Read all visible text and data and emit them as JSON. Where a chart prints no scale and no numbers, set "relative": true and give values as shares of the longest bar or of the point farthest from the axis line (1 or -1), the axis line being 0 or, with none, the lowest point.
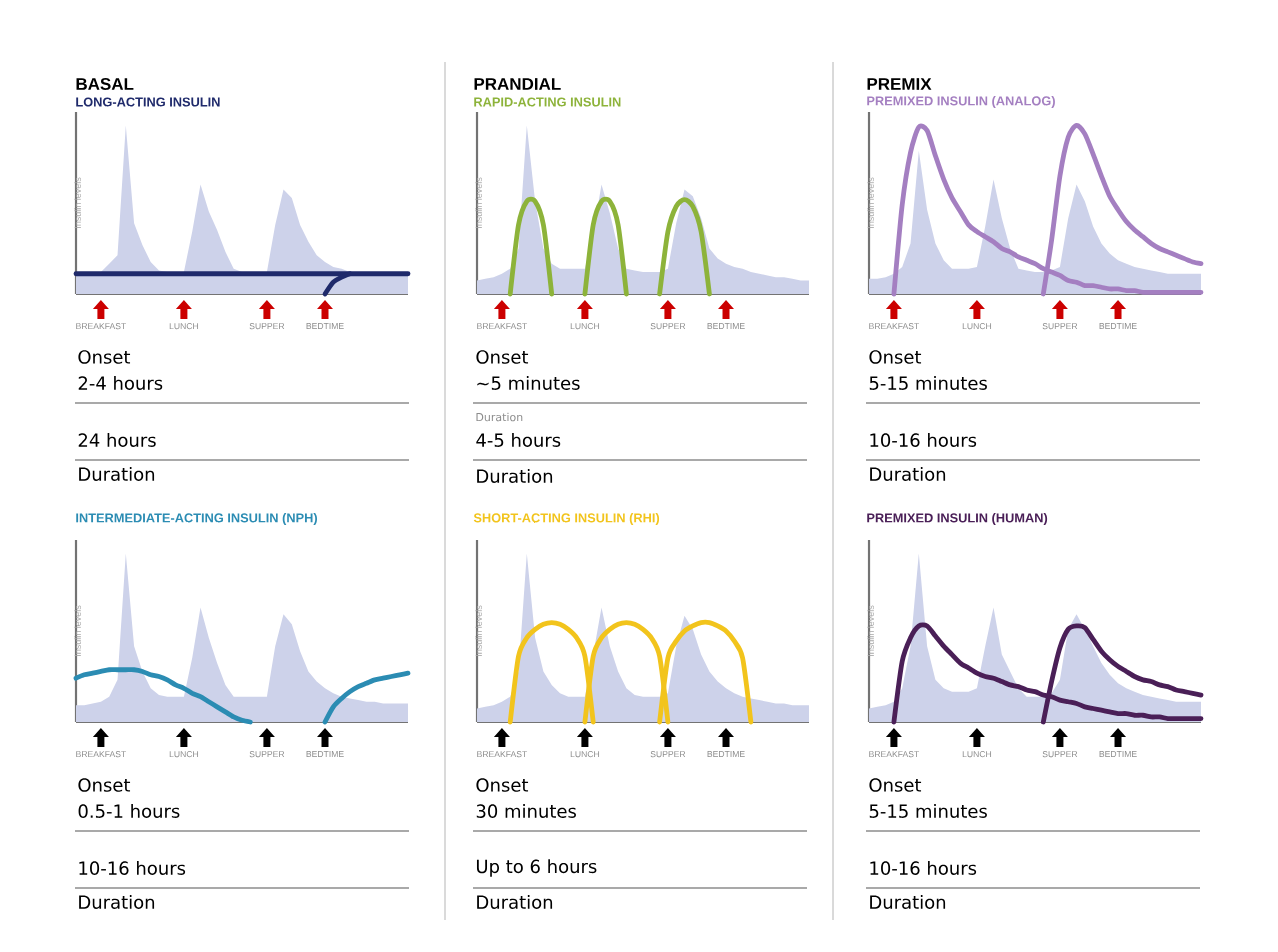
{
  "chart_data": [
    {
      "type": "line",
      "relative": true,
      "title": "BASAL",
      "subtitle": "LONG-ACTING INSULIN",
      "ylabel": "Insulin levels",
      "categories": [
        null,
        null,
        null,
        "BREAKFAST",
        null,
        null,
        null,
        null,
        null,
        null,
        null,
        null,
        null,
        "LUNCH",
        null,
        null,
        null,
        null,
        null,
        null,
        null,
        null,
        null,
        "SUPPER",
        null,
        null,
        null,
        null,
        null,
        null,
        "BEDTIME",
        null,
        null,
        null,
        null,
        null,
        null,
        null,
        null,
        null,
        null
      ],
      "series": [
        {
          "type": "area",
          "color": "#cdd2ea",
          "values": [
            0.13,
            0.13,
            0.13,
            0.13,
            0.18,
            0.23,
            1.0,
            0.42,
            0.29,
            0.19,
            0.14,
            0.13,
            0.13,
            0.13,
            0.37,
            0.65,
            0.49,
            0.38,
            0.25,
            0.15,
            0.13,
            0.13,
            0.13,
            0.13,
            0.41,
            0.62,
            0.57,
            0.41,
            0.31,
            0.23,
            0.19,
            0.16,
            0.15,
            0.13,
            0.13,
            0.13,
            0.13,
            0.13,
            0.13,
            0.13,
            0.13
          ]
        },
        {
          "color": "#1f2a6b",
          "values": [
            0.12,
            0.12,
            0.12,
            0.12,
            0.12,
            0.12,
            0.12,
            0.12,
            0.12,
            0.12,
            0.12,
            0.12,
            0.12,
            0.12,
            0.12,
            0.12,
            0.12,
            0.12,
            0.12,
            0.12,
            0.12,
            0.12,
            0.12,
            0.12,
            0.12,
            0.12,
            0.12,
            0.12,
            0.12,
            0.12,
            0.12,
            0.12,
            0.12,
            0.12,
            0.12,
            0.12,
            0.12,
            0.12,
            0.12,
            0.12,
            0.12
          ]
        },
        {
          "color": "#1f2a6b",
          "values": [
            null,
            null,
            null,
            null,
            null,
            null,
            null,
            null,
            null,
            null,
            null,
            null,
            null,
            null,
            null,
            null,
            null,
            null,
            null,
            null,
            null,
            null,
            null,
            null,
            null,
            null,
            null,
            null,
            null,
            null,
            0,
            0.07,
            0.1,
            0.12,
            null,
            null,
            null,
            null,
            null,
            null,
            null
          ]
        }
      ],
      "annotations": [
        "Onset",
        "2-4 hours",
        "24 hours",
        "Duration"
      ]
    },
    {
      "type": "line",
      "relative": true,
      "title": "PRANDIAL",
      "subtitle": "RAPID-ACTING INSULIN",
      "ylabel": "Insulin levels",
      "categories": [
        null,
        null,
        null,
        "BREAKFAST",
        null,
        null,
        null,
        null,
        null,
        null,
        null,
        null,
        null,
        "LUNCH",
        null,
        null,
        null,
        null,
        null,
        null,
        null,
        null,
        null,
        "SUPPER",
        null,
        null,
        null,
        null,
        null,
        null,
        "BEDTIME",
        null,
        null,
        null,
        null,
        null,
        null,
        null,
        null,
        null,
        null
      ],
      "series": [
        {
          "type": "area",
          "color": "#cdd2ea",
          "values": [
            0.08,
            0.09,
            0.1,
            0.12,
            0.15,
            0.27,
            1.0,
            0.55,
            0.27,
            0.18,
            0.15,
            0.15,
            0.15,
            0.15,
            0.36,
            0.65,
            0.48,
            0.27,
            0.15,
            0.14,
            0.13,
            0.13,
            0.13,
            0.15,
            0.42,
            0.62,
            0.58,
            0.45,
            0.27,
            0.21,
            0.18,
            0.16,
            0.15,
            0.13,
            0.12,
            0.11,
            0.1,
            0.1,
            0.09,
            0.08,
            0.08
          ]
        },
        {
          "color": "#8db33a",
          "values": [
            null,
            null,
            null,
            null,
            0,
            0.41,
            0.55,
            0.55,
            0.41,
            0,
            null,
            null,
            null,
            0,
            0.41,
            0.55,
            0.55,
            0.41,
            0,
            null,
            null,
            null,
            0,
            0.37,
            0.52,
            0.56,
            0.52,
            0.37,
            0,
            null,
            null,
            null,
            null,
            null,
            null,
            null,
            null,
            null,
            null,
            null,
            null
          ]
        }
      ],
      "annotations": [
        "Onset",
        "~5 minutes",
        "Duration",
        "4-5 hours",
        "Duration"
      ]
    },
    {
      "type": "line",
      "relative": true,
      "title": "PREMIX",
      "subtitle": "PREMIXED INSULIN (ANALOG)",
      "ylabel": "Insulin levels",
      "categories": [
        null,
        null,
        null,
        "BREAKFAST",
        null,
        null,
        null,
        null,
        null,
        null,
        null,
        null,
        null,
        "LUNCH",
        null,
        null,
        null,
        null,
        null,
        null,
        null,
        null,
        null,
        "SUPPER",
        null,
        null,
        null,
        null,
        null,
        null,
        "BEDTIME",
        null,
        null,
        null,
        null,
        null,
        null,
        null,
        null,
        null,
        null
      ],
      "series": [
        {
          "type": "area",
          "color": "#cdd2ea",
          "values": [
            0.09,
            0.09,
            0.1,
            0.12,
            0.16,
            0.3,
            0.85,
            0.5,
            0.3,
            0.2,
            0.15,
            0.15,
            0.15,
            0.16,
            0.4,
            0.68,
            0.45,
            0.27,
            0.15,
            0.14,
            0.13,
            0.13,
            0.14,
            0.16,
            0.45,
            0.65,
            0.55,
            0.4,
            0.3,
            0.24,
            0.2,
            0.18,
            0.16,
            0.15,
            0.14,
            0.13,
            0.12,
            0.12,
            0.12,
            0.12,
            0.12
          ]
        },
        {
          "color": "#a47fc1",
          "values": [
            null,
            null,
            null,
            0,
            0.53,
            0.84,
            0.99,
            0.97,
            0.82,
            0.68,
            0.57,
            0.49,
            0.41,
            0.37,
            0.34,
            0.31,
            0.27,
            0.25,
            0.22,
            0.2,
            0.18,
            0.15,
            0.13,
            0.11,
            0.08,
            0.07,
            0.05,
            0.05,
            0.04,
            0.03,
            0.03,
            0.02,
            0.02,
            0.01,
            0.01,
            0.01,
            0.01,
            0.01,
            0.01,
            0.01,
            0.01
          ]
        },
        {
          "color": "#a47fc1",
          "values": [
            null,
            null,
            null,
            null,
            null,
            null,
            null,
            null,
            null,
            null,
            null,
            null,
            null,
            null,
            null,
            null,
            null,
            null,
            null,
            null,
            null,
            0,
            0.32,
            0.7,
            0.93,
            1.0,
            0.95,
            0.83,
            0.7,
            0.58,
            0.5,
            0.43,
            0.38,
            0.34,
            0.3,
            0.27,
            0.25,
            0.23,
            0.21,
            0.19,
            0.18
          ]
        }
      ],
      "annotations": [
        "Onset",
        "5-15 minutes",
        "10-16 hours",
        "Duration"
      ]
    },
    {
      "type": "line",
      "relative": true,
      "title": "INTERMEDIATE-ACTING INSULIN (NPH)",
      "ylabel": "Insulin levels",
      "categories": [
        null,
        null,
        null,
        "BREAKFAST",
        null,
        null,
        null,
        null,
        null,
        null,
        null,
        null,
        null,
        "LUNCH",
        null,
        null,
        null,
        null,
        null,
        null,
        null,
        null,
        null,
        "SUPPER",
        null,
        null,
        null,
        null,
        null,
        null,
        "BEDTIME",
        null,
        null,
        null,
        null,
        null,
        null,
        null,
        null,
        null,
        null
      ],
      "series": [
        {
          "type": "area",
          "color": "#cdd2ea",
          "values": [
            0.1,
            0.1,
            0.11,
            0.12,
            0.15,
            0.25,
            1.0,
            0.45,
            0.3,
            0.2,
            0.16,
            0.15,
            0.15,
            0.15,
            0.38,
            0.68,
            0.5,
            0.35,
            0.22,
            0.15,
            0.15,
            0.15,
            0.15,
            0.15,
            0.45,
            0.64,
            0.58,
            0.42,
            0.3,
            0.24,
            0.2,
            0.17,
            0.15,
            0.14,
            0.13,
            0.12,
            0.12,
            0.11,
            0.11,
            0.11,
            0.11
          ]
        },
        {
          "color": "#2b8cb3",
          "values": [
            0.26,
            0.28,
            0.29,
            0.3,
            0.31,
            0.31,
            0.31,
            0.31,
            0.3,
            0.28,
            0.27,
            0.25,
            0.22,
            0.2,
            0.17,
            0.15,
            0.12,
            0.09,
            0.06,
            0.03,
            0.01,
            0,
            null,
            null,
            null,
            null,
            null,
            null,
            null,
            null,
            0,
            0.09,
            0.14,
            0.18,
            0.21,
            0.23,
            0.25,
            0.26,
            0.27,
            0.28,
            0.29
          ]
        }
      ],
      "annotations": [
        "Onset",
        "0.5-1 hours",
        "10-16 hours",
        "Duration"
      ]
    },
    {
      "type": "line",
      "relative": true,
      "title": "SHORT-ACTING INSULIN (RHI)",
      "ylabel": "Insulin levels",
      "categories": [
        null,
        null,
        null,
        "BREAKFAST",
        null,
        null,
        null,
        null,
        null,
        null,
        null,
        null,
        null,
        "LUNCH",
        null,
        null,
        null,
        null,
        null,
        null,
        null,
        null,
        null,
        "SUPPER",
        null,
        null,
        null,
        null,
        null,
        null,
        "BEDTIME",
        null,
        null,
        null,
        null,
        null,
        null,
        null,
        null,
        null,
        null
      ],
      "series": [
        {
          "type": "area",
          "color": "#cdd2ea",
          "values": [
            0.08,
            0.09,
            0.1,
            0.12,
            0.15,
            0.3,
            1.0,
            0.5,
            0.3,
            0.22,
            0.17,
            0.15,
            0.15,
            0.15,
            0.4,
            0.68,
            0.45,
            0.3,
            0.2,
            0.16,
            0.15,
            0.15,
            0.15,
            0.17,
            0.45,
            0.63,
            0.55,
            0.4,
            0.3,
            0.24,
            0.2,
            0.17,
            0.15,
            0.14,
            0.13,
            0.12,
            0.11,
            0.11,
            0.1,
            0.1,
            0.1
          ]
        },
        {
          "color": "#f2c41c",
          "values": [
            null,
            null,
            null,
            null,
            0,
            0.39,
            0.5,
            0.55,
            0.58,
            0.59,
            0.58,
            0.55,
            0.5,
            0.39,
            0,
            null,
            null,
            null,
            null,
            null,
            null,
            null,
            null,
            null,
            null,
            null,
            null,
            null,
            null,
            null,
            null,
            null,
            null,
            null,
            null,
            null,
            null,
            null,
            null,
            null,
            null
          ]
        },
        {
          "color": "#f2c41c",
          "values": [
            null,
            null,
            null,
            null,
            null,
            null,
            null,
            null,
            null,
            null,
            null,
            null,
            null,
            0,
            0.39,
            0.5,
            0.55,
            0.58,
            0.59,
            0.58,
            0.55,
            0.5,
            0.39,
            0,
            null,
            null,
            null,
            null,
            null,
            null,
            null,
            null,
            null,
            null,
            null,
            null,
            null,
            null,
            null,
            null,
            null
          ]
        },
        {
          "color": "#f2c41c",
          "values": [
            null,
            null,
            null,
            null,
            null,
            null,
            null,
            null,
            null,
            null,
            null,
            null,
            null,
            null,
            null,
            null,
            null,
            null,
            null,
            null,
            null,
            null,
            0,
            0.38,
            0.48,
            0.54,
            0.57,
            0.59,
            0.59,
            0.57,
            0.54,
            0.48,
            0.38,
            0,
            null,
            null,
            null,
            null,
            null,
            null,
            null
          ]
        }
      ],
      "annotations": [
        "Onset",
        "30 minutes",
        "Up to 6 hours",
        "Duration"
      ]
    },
    {
      "type": "line",
      "relative": true,
      "title": "PREMIXED INSULIN (HUMAN)",
      "ylabel": "Insulin levels",
      "categories": [
        null,
        null,
        null,
        "BREAKFAST",
        null,
        null,
        null,
        null,
        null,
        null,
        null,
        null,
        null,
        "LUNCH",
        null,
        null,
        null,
        null,
        null,
        null,
        null,
        null,
        null,
        "SUPPER",
        null,
        null,
        null,
        null,
        null,
        null,
        "BEDTIME",
        null,
        null,
        null,
        null,
        null,
        null,
        null,
        null,
        null,
        null
      ],
      "series": [
        {
          "type": "area",
          "color": "#cdd2ea",
          "values": [
            0.08,
            0.09,
            0.1,
            0.12,
            0.2,
            0.45,
            1.0,
            0.45,
            0.25,
            0.2,
            0.18,
            0.18,
            0.18,
            0.2,
            0.45,
            0.68,
            0.4,
            0.3,
            0.2,
            0.15,
            0.15,
            0.15,
            0.17,
            0.25,
            0.55,
            0.64,
            0.55,
            0.45,
            0.35,
            0.28,
            0.23,
            0.2,
            0.18,
            0.16,
            0.15,
            0.14,
            0.13,
            0.12,
            0.12,
            0.12,
            0.12
          ]
        },
        {
          "color": "#4a1f57",
          "values": [
            null,
            null,
            null,
            0,
            0.36,
            0.5,
            0.57,
            0.57,
            0.51,
            0.45,
            0.4,
            0.35,
            0.32,
            0.29,
            0.27,
            0.26,
            0.24,
            0.22,
            0.21,
            0.19,
            0.18,
            0.16,
            0.15,
            0.13,
            0.12,
            0.11,
            0.09,
            0.08,
            0.07,
            0.06,
            0.05,
            0.05,
            0.04,
            0.04,
            0.03,
            0.03,
            0.02,
            0.02,
            0.02,
            0.02,
            0.02
          ]
        },
        {
          "color": "#4a1f57",
          "values": [
            null,
            null,
            null,
            null,
            null,
            null,
            null,
            null,
            null,
            null,
            null,
            null,
            null,
            null,
            null,
            null,
            null,
            null,
            null,
            null,
            null,
            0,
            0.24,
            0.44,
            0.55,
            0.57,
            0.56,
            0.49,
            0.42,
            0.37,
            0.33,
            0.3,
            0.27,
            0.25,
            0.24,
            0.22,
            0.21,
            0.19,
            0.18,
            0.17,
            0.16
          ]
        }
      ],
      "annotations": [
        "Onset",
        "5-15 minutes",
        "10-16 hours",
        "Duration"
      ]
    }
  ]
}
